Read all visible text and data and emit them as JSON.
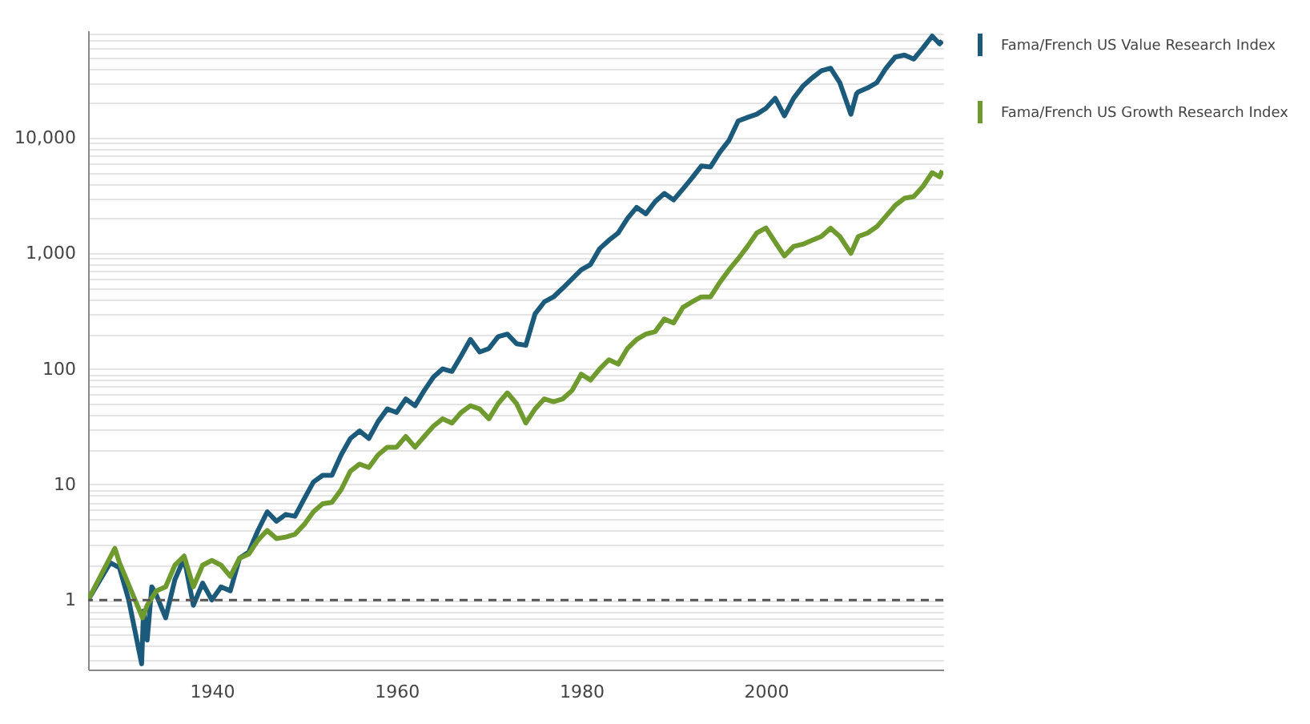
{
  "chart_data": {
    "type": "line",
    "log": "y",
    "grid": "y",
    "legend": "top right",
    "line_style": "solid",
    "xlim": [
      1926.6,
      2019.2
    ],
    "xticks": [
      1940,
      1960,
      1980,
      2000
    ],
    "ylim": [
      0.25,
      85000
    ],
    "yticks": [
      {
        "value": 0.3,
        "label": null
      },
      {
        "value": 0.4,
        "label": null
      },
      {
        "value": 0.5,
        "label": null
      },
      {
        "value": 0.6,
        "label": null
      },
      {
        "value": 0.7,
        "label": null
      },
      {
        "value": 0.8,
        "label": null
      },
      {
        "value": 0.9,
        "label": null
      },
      1,
      {
        "value": 2,
        "label": null
      },
      {
        "value": 3,
        "label": null
      },
      {
        "value": 4,
        "label": null
      },
      {
        "value": 5,
        "label": null
      },
      {
        "value": 6,
        "label": null
      },
      {
        "value": 7,
        "label": null
      },
      {
        "value": 8,
        "label": null
      },
      {
        "value": 9,
        "label": null
      },
      10,
      {
        "value": 20,
        "label": null
      },
      {
        "value": 30,
        "label": null
      },
      {
        "value": 40,
        "label": null
      },
      {
        "value": 50,
        "label": null
      },
      {
        "value": 60,
        "label": null
      },
      {
        "value": 70,
        "label": null
      },
      {
        "value": 80,
        "label": null
      },
      {
        "value": 90,
        "label": null
      },
      100,
      {
        "value": 200,
        "label": null
      },
      {
        "value": 300,
        "label": null
      },
      {
        "value": 400,
        "label": null
      },
      {
        "value": 500,
        "label": null
      },
      {
        "value": 600,
        "label": null
      },
      {
        "value": 700,
        "label": null
      },
      {
        "value": 800,
        "label": null
      },
      {
        "value": 900,
        "label": null
      },
      {
        "value": 1000,
        "label": "1,000"
      },
      {
        "value": 2000,
        "label": null
      },
      {
        "value": 3000,
        "label": null
      },
      {
        "value": 4000,
        "label": null
      },
      {
        "value": 5000,
        "label": null
      },
      {
        "value": 6000,
        "label": null
      },
      {
        "value": 7000,
        "label": null
      },
      {
        "value": 8000,
        "label": null
      },
      {
        "value": 9000,
        "label": null
      },
      {
        "value": 10000,
        "label": "10,000"
      },
      {
        "value": 20000,
        "label": null
      },
      {
        "value": 30000,
        "label": null
      },
      {
        "value": 40000,
        "label": null
      },
      {
        "value": 50000,
        "label": null
      },
      {
        "value": 60000,
        "label": null
      },
      {
        "value": 70000,
        "label": null
      },
      {
        "value": 80000,
        "label": null
      }
    ],
    "ref_lines": [
      {
        "axis": "y",
        "value": 1,
        "color": "#555555",
        "line_style": "dashed"
      }
    ],
    "series": [
      {
        "name": "Fama/French US Value Research Index",
        "color": "#1b5a7a",
        "x": [
          1926.6,
          1929,
          1930,
          1931,
          1932.4,
          1932.6,
          1933,
          1933.5,
          1934,
          1935,
          1936,
          1937,
          1938,
          1939,
          1940,
          1941,
          1942,
          1943,
          1944,
          1945,
          1946,
          1947,
          1948,
          1949,
          1950,
          1951,
          1952,
          1953,
          1954,
          1955,
          1956,
          1957,
          1958,
          1959,
          1960,
          1961,
          1962,
          1963,
          1964,
          1965,
          1966,
          1967,
          1968,
          1969,
          1970,
          1971,
          1972,
          1973,
          1974,
          1975,
          1976,
          1977,
          1978,
          1979,
          1980,
          1981,
          1982,
          1983,
          1984,
          1985,
          1986,
          1987,
          1988,
          1989,
          1990,
          1991,
          1992,
          1993,
          1994,
          1995,
          1996,
          1997,
          1998,
          1999,
          2000,
          2001,
          2002,
          2003,
          2004,
          2005,
          2006,
          2007,
          2008,
          2009.2,
          2009.8,
          2010,
          2011,
          2012,
          2013,
          2014,
          2015,
          2016,
          2017,
          2018,
          2018.8,
          2019.1
        ],
        "values": [
          1,
          2.1,
          1.9,
          1.0,
          0.28,
          0.8,
          0.45,
          1.3,
          1.1,
          0.7,
          1.5,
          2.3,
          0.9,
          1.4,
          1.0,
          1.3,
          1.2,
          2.3,
          2.6,
          4.0,
          5.8,
          4.8,
          5.5,
          5.3,
          7.5,
          10.5,
          12,
          12,
          18,
          25,
          29,
          25,
          35,
          45,
          42,
          55,
          48,
          65,
          85,
          100,
          95,
          130,
          180,
          140,
          150,
          190,
          200,
          165,
          160,
          300,
          380,
          420,
          500,
          600,
          720,
          800,
          1100,
          1300,
          1500,
          2000,
          2500,
          2200,
          2800,
          3300,
          2900,
          3600,
          4500,
          5700,
          5600,
          7500,
          9500,
          14000,
          15000,
          16000,
          18000,
          22000,
          15500,
          22000,
          28000,
          33000,
          38000,
          40000,
          30000,
          16000,
          24000,
          25000,
          27000,
          30000,
          40000,
          50000,
          52000,
          48000,
          60000,
          76000,
          65000,
          69000
        ]
      },
      {
        "name": "Fama/French US Growth Research Index",
        "color": "#6e9a2e",
        "x": [
          1926.6,
          1929.5,
          1930,
          1932.5,
          1933,
          1934,
          1935,
          1936,
          1937,
          1938,
          1939,
          1940,
          1941,
          1942,
          1943,
          1944,
          1945,
          1946,
          1947,
          1948,
          1949,
          1950,
          1951,
          1952,
          1953,
          1954,
          1955,
          1956,
          1957,
          1958,
          1959,
          1960,
          1961,
          1962,
          1963,
          1964,
          1965,
          1966,
          1967,
          1968,
          1969,
          1970,
          1971,
          1972,
          1973,
          1974,
          1975,
          1976,
          1977,
          1978,
          1979,
          1980,
          1981,
          1982,
          1983,
          1984,
          1985,
          1986,
          1987,
          1988,
          1989,
          1990,
          1991,
          1992,
          1993,
          1994,
          1995,
          1996,
          1997,
          1998,
          1999,
          2000,
          2001,
          2002,
          2003,
          2004,
          2005,
          2006,
          2007,
          2008,
          2009.2,
          2010,
          2011,
          2012,
          2013,
          2014,
          2015,
          2016,
          2017,
          2018,
          2018.8,
          2019.1
        ],
        "values": [
          1,
          2.8,
          2.1,
          0.7,
          0.9,
          1.2,
          1.3,
          2.0,
          2.4,
          1.3,
          2.0,
          2.2,
          2.0,
          1.6,
          2.3,
          2.5,
          3.3,
          4.0,
          3.4,
          3.5,
          3.7,
          4.5,
          5.8,
          6.8,
          7,
          9,
          13,
          15,
          14,
          18,
          21,
          21,
          26,
          21,
          26,
          32,
          37,
          34,
          42,
          48,
          45,
          37,
          50,
          62,
          50,
          34,
          45,
          55,
          52,
          55,
          65,
          90,
          80,
          100,
          120,
          110,
          150,
          180,
          200,
          210,
          270,
          250,
          340,
          380,
          420,
          420,
          560,
          720,
          900,
          1150,
          1500,
          1660,
          1250,
          950,
          1150,
          1200,
          1300,
          1400,
          1650,
          1400,
          1000,
          1400,
          1500,
          1700,
          2100,
          2600,
          3000,
          3100,
          3800,
          5000,
          4600,
          5200
        ]
      }
    ]
  }
}
